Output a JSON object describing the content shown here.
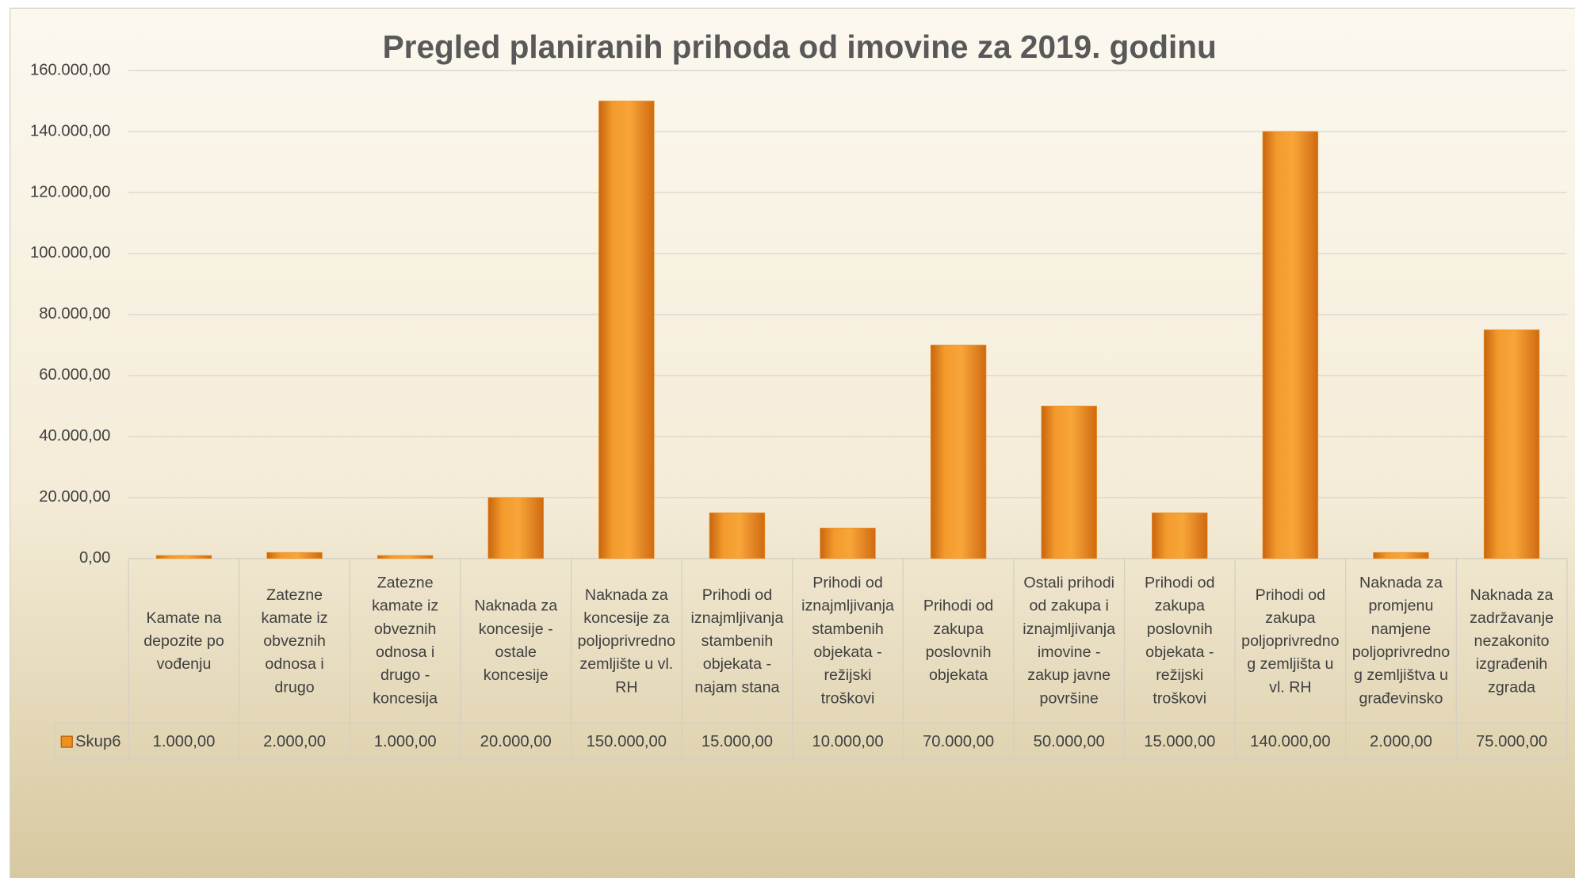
{
  "chart_data": {
    "type": "bar",
    "title": "Pregled planiranih prihoda od imovine za 2019. godinu",
    "categories": [
      "Kamate na depozite po vođenju",
      "Zatezne kamate iz obveznih odnosa i drugo",
      "Zatezne kamate iz obveznih odnosa i drugo - koncesija",
      "Naknada za koncesije - ostale koncesije",
      "Naknada za koncesije za poljoprivredno zemljište u vl. RH",
      "Prihodi od iznajmljivanja stambenih objekata - najam stana",
      "Prihodi od iznajmljivanja stambenih objekata - režijski troškovi",
      "Prihodi od zakupa poslovnih objekata",
      "Ostali prihodi od zakupa i iznajmljivanja imovine - zakup javne površine",
      "Prihodi od zakupa poslovnih objekata - režijski troškovi",
      "Prihodi od zakupa poljoprivrednog zemljišta u vl. RH",
      "Naknada za promjenu namjene poljoprivrednog zemljištva u građevinsko",
      "Naknada za zadržavanje nezakonito izgrađenih zgrada"
    ],
    "series": [
      {
        "name": "Skup6",
        "color": "#f0901e",
        "values": [
          1000,
          2000,
          1000,
          20000,
          150000,
          15000,
          10000,
          70000,
          50000,
          15000,
          140000,
          2000,
          75000
        ],
        "value_labels": [
          "1.000,00",
          "2.000,00",
          "1.000,00",
          "20.000,00",
          "150.000,00",
          "15.000,00",
          "10.000,00",
          "70.000,00",
          "50.000,00",
          "15.000,00",
          "140.000,00",
          "2.000,00",
          "75.000,00"
        ]
      }
    ],
    "ylim": [
      0,
      160000
    ],
    "yticks": [
      {
        "value": 0,
        "label": "0,00"
      },
      {
        "value": 20000,
        "label": "20.000,00"
      },
      {
        "value": 40000,
        "label": "40.000,00"
      },
      {
        "value": 60000,
        "label": "60.000,00"
      },
      {
        "value": 80000,
        "label": "80.000,00"
      },
      {
        "value": 100000,
        "label": "100.000,00"
      },
      {
        "value": 120000,
        "label": "120.000,00"
      },
      {
        "value": 140000,
        "label": "140.000,00"
      },
      {
        "value": 160000,
        "label": "160.000,00"
      }
    ],
    "grid": true
  }
}
